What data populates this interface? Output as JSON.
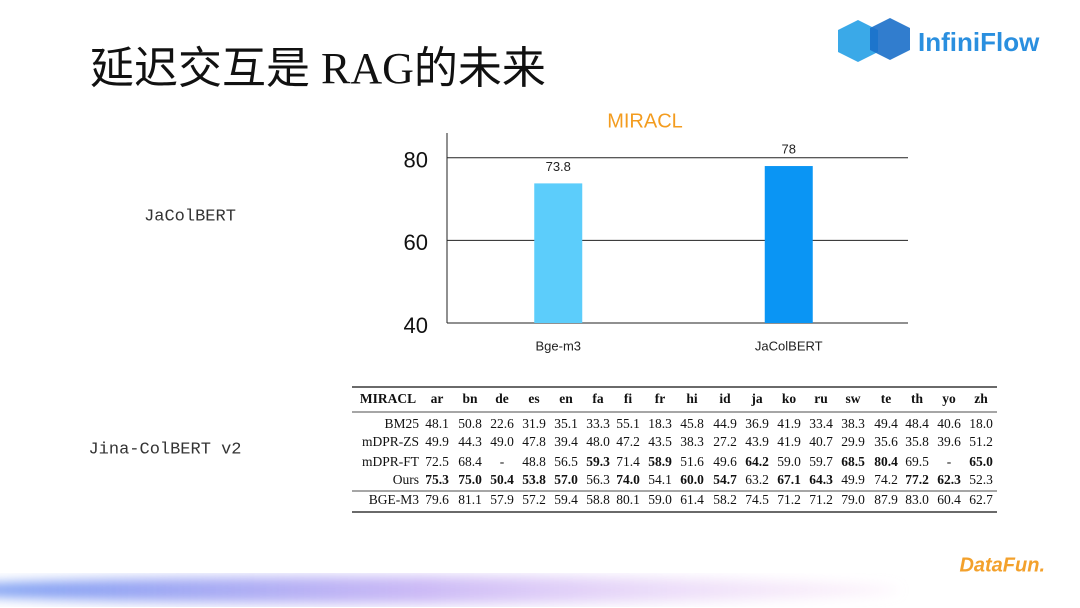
{
  "slide": {
    "title": "延迟交互是 RAG的未来",
    "logo": "InfiniFlow",
    "footer_logo": "DataFun.",
    "labels": [
      "JaColBERT",
      "Jina-ColBERT v2"
    ]
  },
  "chart_data": {
    "type": "bar",
    "title": "MIRACL",
    "categories": [
      "Bge-m3",
      "JaColBERT"
    ],
    "values": [
      73.8,
      78
    ],
    "colors": [
      "#5ccdfb",
      "#0a95f4"
    ],
    "ylim": [
      40,
      86
    ],
    "yticks": [
      40,
      60,
      80
    ],
    "grid": true
  },
  "table": {
    "header": [
      "MIRACL",
      "ar",
      "bn",
      "de",
      "es",
      "en",
      "fa",
      "fi",
      "fr",
      "hi",
      "id",
      "ja",
      "ko",
      "ru",
      "sw",
      "te",
      "th",
      "yo",
      "zh"
    ],
    "rows": [
      {
        "cells": [
          "BM25",
          "48.1",
          "50.8",
          "22.6",
          "31.9",
          "35.1",
          "33.3",
          "55.1",
          "18.3",
          "45.8",
          "44.9",
          "36.9",
          "41.9",
          "33.4",
          "38.3",
          "49.4",
          "48.4",
          "40.6",
          "18.0"
        ],
        "bold": []
      },
      {
        "cells": [
          "mDPR-ZS",
          "49.9",
          "44.3",
          "49.0",
          "47.8",
          "39.4",
          "48.0",
          "47.2",
          "43.5",
          "38.3",
          "27.2",
          "43.9",
          "41.9",
          "40.7",
          "29.9",
          "35.6",
          "35.8",
          "39.6",
          "51.2"
        ],
        "bold": []
      },
      {
        "cells": [
          "mDPR-FT",
          "72.5",
          "68.4",
          "-",
          "48.8",
          "56.5",
          "59.3",
          "71.4",
          "58.9",
          "51.6",
          "49.6",
          "64.2",
          "59.0",
          "59.7",
          "68.5",
          "80.4",
          "69.5",
          "-",
          "65.0"
        ],
        "bold": [
          6,
          8,
          11,
          14,
          15,
          18
        ]
      },
      {
        "cells": [
          "Ours",
          "75.3",
          "75.0",
          "50.4",
          "53.8",
          "57.0",
          "56.3",
          "74.0",
          "54.1",
          "60.0",
          "54.7",
          "63.2",
          "67.1",
          "64.3",
          "49.9",
          "74.2",
          "77.2",
          "62.3",
          "52.3"
        ],
        "bold": [
          1,
          2,
          3,
          4,
          5,
          7,
          9,
          10,
          12,
          13,
          16,
          17
        ]
      },
      {
        "cells": [
          "BGE-M3",
          "79.6",
          "81.1",
          "57.9",
          "57.2",
          "59.4",
          "58.8",
          "80.1",
          "59.0",
          "61.4",
          "58.2",
          "74.5",
          "71.2",
          "71.2",
          "79.0",
          "87.9",
          "83.0",
          "60.4",
          "62.7"
        ],
        "bold": []
      }
    ]
  }
}
